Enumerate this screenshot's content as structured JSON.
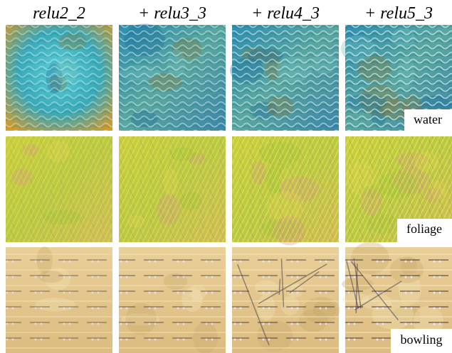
{
  "header": {
    "columns": [
      "relu2_2",
      "+ relu3_3",
      "+ relu4_3",
      "+ relu5_3"
    ]
  },
  "rows": [
    {
      "label": "water"
    },
    {
      "label": "foliage"
    },
    {
      "label": "bowling"
    }
  ]
}
